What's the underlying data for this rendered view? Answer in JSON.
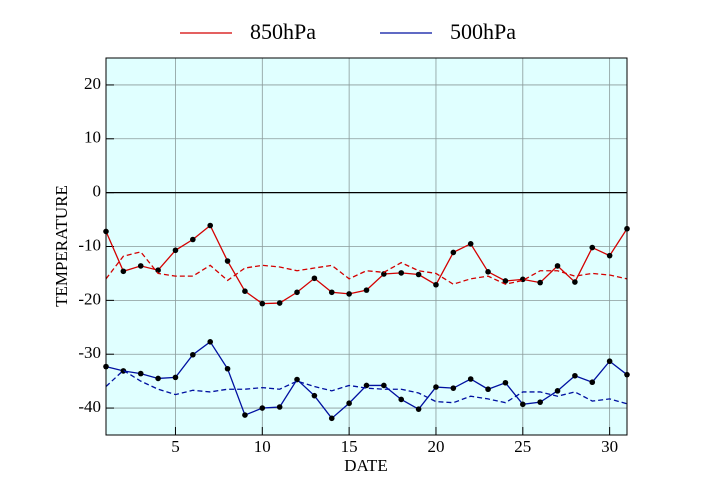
{
  "chart_data": {
    "type": "line",
    "x": [
      1,
      2,
      3,
      4,
      5,
      6,
      7,
      8,
      9,
      10,
      11,
      12,
      13,
      14,
      15,
      16,
      17,
      18,
      19,
      20,
      21,
      22,
      23,
      24,
      25,
      26,
      27,
      28,
      29,
      30,
      31
    ],
    "series": [
      {
        "name": "850hPa",
        "color": "#d40000",
        "markers": true,
        "values": [
          -7.2,
          -14.6,
          -13.6,
          -14.4,
          -10.7,
          -8.7,
          -6.1,
          -12.7,
          -18.3,
          -20.6,
          -20.5,
          -18.5,
          -15.9,
          -18.5,
          -18.8,
          -18.1,
          -15.1,
          -14.9,
          -15.2,
          -17.1,
          -11.1,
          -9.5,
          -14.7,
          -16.4,
          -16.1,
          -16.7,
          -13.6,
          -16.6,
          -10.2,
          -11.7,
          -6.7
        ]
      },
      {
        "name": "500hPa",
        "color": "#0010a0",
        "markers": true,
        "values": [
          -32.3,
          -33.1,
          -33.6,
          -34.5,
          -34.3,
          -30.1,
          -27.7,
          -32.7,
          -41.3,
          -40,
          -39.8,
          -34.7,
          -37.7,
          -41.9,
          -39.1,
          -35.8,
          -35.8,
          -38.4,
          -40.2,
          -36.1,
          -36.3,
          -34.6,
          -36.5,
          -35.3,
          -39.3,
          -38.9,
          -36.8,
          -34,
          -35.2,
          -31.3,
          -33.8
        ]
      },
      {
        "color": "#d40000",
        "dashed": true,
        "values": [
          -16,
          -11.8,
          -11,
          -15,
          -15.5,
          -15.5,
          -13.5,
          -16.3,
          -14,
          -13.5,
          -13.8,
          -14.5,
          -14,
          -13.5,
          -16,
          -14.5,
          -14.8,
          -13,
          -14.5,
          -15,
          -17,
          -16,
          -15.5,
          -17,
          -16.3,
          -14.5,
          -14.5,
          -15.5,
          -15,
          -15.3,
          -16
        ]
      },
      {
        "color": "#0010a0",
        "dashed": true,
        "values": [
          -36,
          -33,
          -35,
          -36.5,
          -37.5,
          -36.7,
          -37,
          -36.5,
          -36.5,
          -36.2,
          -36.5,
          -35,
          -36,
          -36.8,
          -35.8,
          -36.3,
          -36.5,
          -36.5,
          -37.2,
          -38.8,
          -39,
          -37.8,
          -38.3,
          -39,
          -37,
          -37,
          -37.8,
          -37,
          -38.7,
          -38.3,
          -39.2
        ]
      }
    ],
    "x_label": "DATE",
    "y_label": "TEMPERATURE",
    "xlim": [
      1,
      31
    ],
    "xticks": [
      5,
      10,
      15,
      20,
      25,
      30
    ],
    "ylim": [
      -45,
      25
    ],
    "yticks": [
      -40,
      -30,
      -20,
      -10,
      0,
      10,
      20
    ],
    "grid": true,
    "zero_line": true,
    "legend": "top",
    "background": "#e0ffff"
  }
}
